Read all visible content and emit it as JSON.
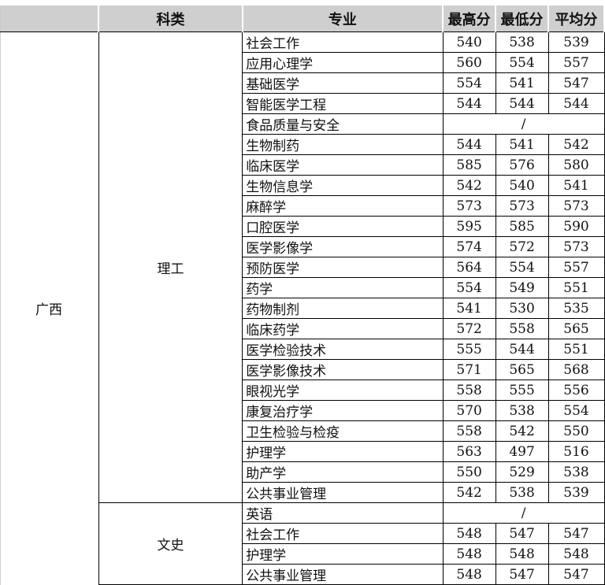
{
  "header": {
    "province": "",
    "category": "科类",
    "major": "专业",
    "max": "最高分",
    "min": "最低分",
    "avg": "平均分"
  },
  "province": "广西",
  "groups": [
    {
      "category": "理工",
      "rows": [
        {
          "major": "社会工作",
          "max": "540",
          "min": "538",
          "avg": "539"
        },
        {
          "major": "应用心理学",
          "max": "560",
          "min": "554",
          "avg": "557"
        },
        {
          "major": "基础医学",
          "max": "554",
          "min": "541",
          "avg": "547"
        },
        {
          "major": "智能医学工程",
          "max": "544",
          "min": "544",
          "avg": "544"
        },
        {
          "major": "食品质量与安全",
          "merged": "/"
        },
        {
          "major": "生物制药",
          "max": "544",
          "min": "541",
          "avg": "542"
        },
        {
          "major": "临床医学",
          "max": "585",
          "min": "576",
          "avg": "580"
        },
        {
          "major": "生物信息学",
          "max": "542",
          "min": "540",
          "avg": "541"
        },
        {
          "major": "麻醉学",
          "max": "573",
          "min": "573",
          "avg": "573"
        },
        {
          "major": "口腔医学",
          "max": "595",
          "min": "585",
          "avg": "590"
        },
        {
          "major": "医学影像学",
          "max": "574",
          "min": "572",
          "avg": "573"
        },
        {
          "major": "预防医学",
          "max": "564",
          "min": "554",
          "avg": "557"
        },
        {
          "major": "药学",
          "max": "554",
          "min": "549",
          "avg": "551"
        },
        {
          "major": "药物制剂",
          "max": "541",
          "min": "530",
          "avg": "535"
        },
        {
          "major": "临床药学",
          "max": "572",
          "min": "558",
          "avg": "565"
        },
        {
          "major": "医学检验技术",
          "max": "555",
          "min": "544",
          "avg": "551"
        },
        {
          "major": "医学影像技术",
          "max": "571",
          "min": "565",
          "avg": "568"
        },
        {
          "major": "眼视光学",
          "max": "558",
          "min": "555",
          "avg": "556"
        },
        {
          "major": "康复治疗学",
          "max": "570",
          "min": "538",
          "avg": "554"
        },
        {
          "major": "卫生检验与检疫",
          "max": "558",
          "min": "542",
          "avg": "550"
        },
        {
          "major": "护理学",
          "max": "563",
          "min": "497",
          "avg": "516"
        },
        {
          "major": "助产学",
          "max": "550",
          "min": "529",
          "avg": "538"
        },
        {
          "major": "公共事业管理",
          "max": "542",
          "min": "538",
          "avg": "539"
        }
      ]
    },
    {
      "category": "文史",
      "rows": [
        {
          "major": "英语",
          "merged": "/"
        },
        {
          "major": "社会工作",
          "max": "548",
          "min": "547",
          "avg": "547"
        },
        {
          "major": "护理学",
          "max": "548",
          "min": "548",
          "avg": "548"
        },
        {
          "major": "公共事业管理",
          "max": "548",
          "min": "547",
          "avg": "547"
        }
      ]
    }
  ]
}
